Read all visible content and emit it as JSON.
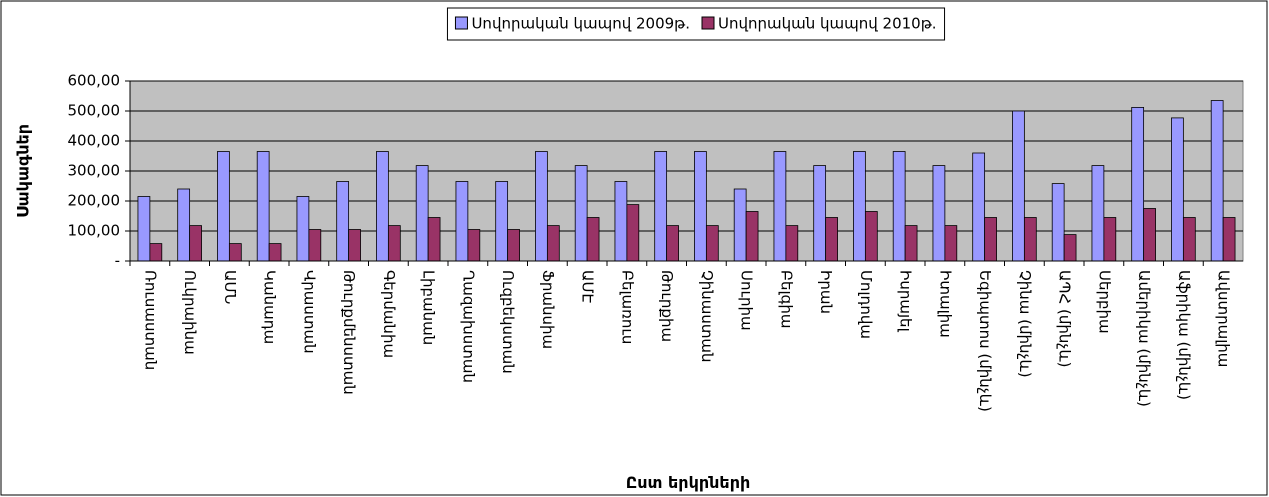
{
  "chart_data": {
    "type": "bar",
    "categories": [
      "Ռուսաստան",
      "Ուկրաինա",
      "ԱՄՆ",
      "Կանադա",
      "Վրաստան",
      "Թուրքմենստան",
      "Գերմանիա",
      "Լիբանան",
      "Ղազախստան",
      "Ուզբեկստան",
      "Ֆրանսիա",
      "ԱՄԷ",
      "Բելառուս",
      "Թուրքիա",
      "Չինաստան",
      "Սուրիա",
      "Բելգիա",
      "Իրան",
      "Մոլդովա",
      "Իսրայել",
      "Իտալիա",
      "Եգիպտոս (մինչև)",
      "Չինա (մինչև)",
      "ԱՊՀ (մինչև)",
      "Սերբիա",
      "Ամերիկա (մինչև)",
      "Աֆրիկա (մինչև)",
      "Ավստրալիա"
    ],
    "series": [
      {
        "name": "Սովորական կապով 2009թ.",
        "color": "#9999ff",
        "values": [
          215,
          240,
          365,
          365,
          215,
          265,
          365,
          318,
          265,
          265,
          365,
          318,
          265,
          365,
          365,
          240,
          365,
          318,
          365,
          365,
          318,
          360,
          500,
          258,
          318,
          512,
          477,
          535
        ]
      },
      {
        "name": "Սովորական կապով 2010թ.",
        "color": "#993366",
        "values": [
          58,
          118,
          58,
          58,
          105,
          105,
          118,
          145,
          105,
          105,
          118,
          145,
          188,
          118,
          118,
          165,
          118,
          145,
          165,
          118,
          118,
          145,
          145,
          88,
          145,
          175,
          145,
          145
        ]
      }
    ],
    "xlabel": "Ըստ երկրների",
    "ylabel": "Սակագներ",
    "ylim": [
      0,
      600
    ],
    "yticks": [
      {
        "value": 0,
        "label": "-"
      },
      {
        "value": 100,
        "label": "100,00"
      },
      {
        "value": 200,
        "label": "200,00"
      },
      {
        "value": 300,
        "label": "300,00"
      },
      {
        "value": 400,
        "label": "400,00"
      },
      {
        "value": 500,
        "label": "500,00"
      },
      {
        "value": 600,
        "label": "600,00"
      }
    ],
    "grid": true,
    "legend": "top"
  }
}
